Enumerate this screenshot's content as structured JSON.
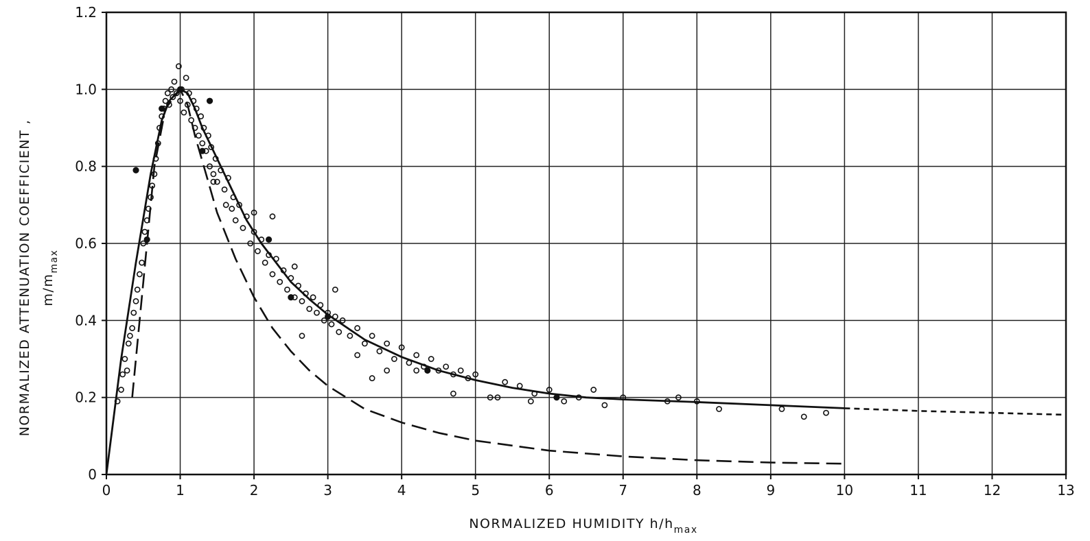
{
  "chart_data": {
    "type": "scatter",
    "xlabel_text": "NORMALIZED  HUMIDITY  h/h",
    "xlabel_sub": "max",
    "ylabel_line1": "NORMALIZED  ATTENUATION  COEFFICIENT ,",
    "ylabel_line2_text": "m/m",
    "ylabel_line2_sub": "max",
    "xlim": [
      0,
      13
    ],
    "ylim": [
      0,
      1.2
    ],
    "x_ticks": [
      0,
      1,
      2,
      3,
      4,
      5,
      6,
      7,
      8,
      9,
      10,
      11,
      12,
      13
    ],
    "x_tick_labels": [
      "0",
      "1",
      "2",
      "3",
      "4",
      "5",
      "6",
      "7",
      "8",
      "9",
      "10",
      "11",
      "12",
      "13"
    ],
    "y_ticks": [
      0,
      0.2,
      0.4,
      0.6,
      0.8,
      1.0,
      1.2
    ],
    "y_tick_labels": [
      "0",
      "0.2",
      "0.4",
      "0.6",
      "0.8",
      "1.0",
      "1.2"
    ],
    "grid": true,
    "series": [
      {
        "style": "solid",
        "points": [
          [
            0,
            0
          ],
          [
            0.2,
            0.3
          ],
          [
            0.4,
            0.55
          ],
          [
            0.6,
            0.78
          ],
          [
            0.75,
            0.92
          ],
          [
            0.85,
            0.97
          ],
          [
            1.0,
            1.0
          ],
          [
            1.1,
            0.99
          ],
          [
            1.2,
            0.95
          ],
          [
            1.3,
            0.9
          ],
          [
            1.4,
            0.86
          ],
          [
            1.5,
            0.82
          ],
          [
            1.7,
            0.74
          ],
          [
            1.9,
            0.66
          ],
          [
            2.1,
            0.6
          ],
          [
            2.3,
            0.55
          ],
          [
            2.5,
            0.5
          ],
          [
            2.75,
            0.455
          ],
          [
            3.0,
            0.415
          ],
          [
            3.5,
            0.35
          ],
          [
            4.0,
            0.305
          ],
          [
            4.5,
            0.27
          ],
          [
            5.0,
            0.245
          ],
          [
            5.5,
            0.225
          ],
          [
            6.0,
            0.21
          ],
          [
            6.5,
            0.2
          ],
          [
            7.0,
            0.195
          ],
          [
            8.0,
            0.188
          ],
          [
            9.0,
            0.18
          ],
          [
            10.0,
            0.172
          ]
        ]
      },
      {
        "style": "dotted",
        "points": [
          [
            10.0,
            0.172
          ],
          [
            11.0,
            0.165
          ],
          [
            12.0,
            0.16
          ],
          [
            13.0,
            0.155
          ]
        ]
      },
      {
        "style": "dashed",
        "points": [
          [
            0.35,
            0.2
          ],
          [
            0.5,
            0.5
          ],
          [
            0.65,
            0.8
          ],
          [
            0.8,
            0.95
          ],
          [
            1.0,
            1.0
          ],
          [
            1.1,
            0.96
          ],
          [
            1.2,
            0.88
          ],
          [
            1.35,
            0.78
          ],
          [
            1.5,
            0.68
          ],
          [
            1.75,
            0.56
          ],
          [
            2.0,
            0.46
          ],
          [
            2.25,
            0.38
          ],
          [
            2.5,
            0.32
          ],
          [
            2.75,
            0.27
          ],
          [
            3.0,
            0.23
          ],
          [
            3.5,
            0.17
          ],
          [
            4.0,
            0.135
          ],
          [
            4.5,
            0.108
          ],
          [
            5.0,
            0.088
          ],
          [
            6.0,
            0.062
          ],
          [
            7.0,
            0.047
          ],
          [
            8.0,
            0.037
          ],
          [
            9.0,
            0.031
          ],
          [
            10.0,
            0.028
          ]
        ]
      }
    ],
    "scatter_open": [
      [
        0.15,
        0.19
      ],
      [
        0.2,
        0.22
      ],
      [
        0.22,
        0.26
      ],
      [
        0.25,
        0.3
      ],
      [
        0.28,
        0.27
      ],
      [
        0.3,
        0.34
      ],
      [
        0.32,
        0.36
      ],
      [
        0.35,
        0.38
      ],
      [
        0.37,
        0.42
      ],
      [
        0.4,
        0.45
      ],
      [
        0.42,
        0.48
      ],
      [
        0.45,
        0.52
      ],
      [
        0.48,
        0.55
      ],
      [
        0.5,
        0.6
      ],
      [
        0.52,
        0.63
      ],
      [
        0.55,
        0.66
      ],
      [
        0.57,
        0.69
      ],
      [
        0.6,
        0.72
      ],
      [
        0.62,
        0.75
      ],
      [
        0.65,
        0.78
      ],
      [
        0.67,
        0.82
      ],
      [
        0.7,
        0.86
      ],
      [
        0.72,
        0.9
      ],
      [
        0.75,
        0.93
      ],
      [
        0.78,
        0.95
      ],
      [
        0.8,
        0.97
      ],
      [
        0.83,
        0.99
      ],
      [
        0.85,
        0.96
      ],
      [
        0.88,
        1.0
      ],
      [
        0.9,
        0.98
      ],
      [
        0.92,
        1.02
      ],
      [
        0.95,
        0.99
      ],
      [
        0.98,
        1.06
      ],
      [
        1.0,
        0.97
      ],
      [
        1.02,
        1.0
      ],
      [
        1.05,
        0.94
      ],
      [
        1.08,
        1.03
      ],
      [
        1.1,
        0.96
      ],
      [
        1.12,
        0.99
      ],
      [
        1.15,
        0.92
      ],
      [
        1.18,
        0.97
      ],
      [
        1.2,
        0.9
      ],
      [
        1.22,
        0.95
      ],
      [
        1.25,
        0.88
      ],
      [
        1.28,
        0.93
      ],
      [
        1.3,
        0.86
      ],
      [
        1.32,
        0.9
      ],
      [
        1.35,
        0.84
      ],
      [
        1.38,
        0.88
      ],
      [
        1.4,
        0.8
      ],
      [
        1.42,
        0.85
      ],
      [
        1.45,
        0.78
      ],
      [
        1.48,
        0.82
      ],
      [
        1.5,
        0.76
      ],
      [
        1.55,
        0.79
      ],
      [
        1.6,
        0.74
      ],
      [
        1.62,
        0.7
      ],
      [
        1.65,
        0.77
      ],
      [
        1.7,
        0.69
      ],
      [
        1.72,
        0.72
      ],
      [
        1.75,
        0.66
      ],
      [
        1.8,
        0.7
      ],
      [
        1.85,
        0.64
      ],
      [
        1.9,
        0.67
      ],
      [
        1.95,
        0.6
      ],
      [
        2.0,
        0.63
      ],
      [
        2.05,
        0.58
      ],
      [
        2.1,
        0.61
      ],
      [
        2.15,
        0.55
      ],
      [
        2.2,
        0.57
      ],
      [
        2.25,
        0.52
      ],
      [
        2.3,
        0.56
      ],
      [
        2.35,
        0.5
      ],
      [
        2.4,
        0.53
      ],
      [
        2.45,
        0.48
      ],
      [
        2.5,
        0.51
      ],
      [
        2.55,
        0.46
      ],
      [
        2.6,
        0.49
      ],
      [
        2.65,
        0.45
      ],
      [
        2.7,
        0.47
      ],
      [
        2.75,
        0.43
      ],
      [
        2.8,
        0.46
      ],
      [
        2.85,
        0.42
      ],
      [
        2.9,
        0.44
      ],
      [
        2.95,
        0.4
      ],
      [
        3.0,
        0.42
      ],
      [
        3.05,
        0.39
      ],
      [
        3.1,
        0.41
      ],
      [
        3.15,
        0.37
      ],
      [
        3.2,
        0.4
      ],
      [
        3.3,
        0.36
      ],
      [
        3.4,
        0.38
      ],
      [
        3.5,
        0.34
      ],
      [
        3.6,
        0.36
      ],
      [
        3.7,
        0.32
      ],
      [
        3.8,
        0.34
      ],
      [
        3.9,
        0.3
      ],
      [
        4.0,
        0.33
      ],
      [
        4.1,
        0.29
      ],
      [
        4.2,
        0.31
      ],
      [
        4.3,
        0.28
      ],
      [
        4.4,
        0.3
      ],
      [
        4.5,
        0.27
      ],
      [
        4.6,
        0.28
      ],
      [
        4.7,
        0.26
      ],
      [
        4.8,
        0.27
      ],
      [
        4.9,
        0.25
      ],
      [
        5.0,
        0.26
      ],
      [
        5.2,
        0.2
      ],
      [
        5.4,
        0.24
      ],
      [
        5.6,
        0.23
      ],
      [
        5.75,
        0.19
      ],
      [
        5.8,
        0.21
      ],
      [
        6.0,
        0.22
      ],
      [
        6.2,
        0.19
      ],
      [
        6.4,
        0.2
      ],
      [
        6.6,
        0.22
      ],
      [
        6.75,
        0.18
      ],
      [
        7.0,
        0.2
      ],
      [
        7.6,
        0.19
      ],
      [
        7.75,
        0.2
      ],
      [
        8.0,
        0.19
      ],
      [
        8.3,
        0.17
      ],
      [
        9.15,
        0.17
      ],
      [
        9.45,
        0.15
      ],
      [
        9.75,
        0.16
      ],
      [
        2.65,
        0.36
      ],
      [
        2.55,
        0.54
      ],
      [
        3.1,
        0.48
      ],
      [
        3.6,
        0.25
      ],
      [
        4.7,
        0.21
      ],
      [
        5.3,
        0.2
      ],
      [
        3.4,
        0.31
      ],
      [
        3.8,
        0.27
      ],
      [
        4.2,
        0.27
      ],
      [
        1.45,
        0.76
      ],
      [
        2.0,
        0.68
      ],
      [
        2.25,
        0.67
      ]
    ],
    "scatter_filled": [
      [
        0.4,
        0.79
      ],
      [
        0.55,
        0.61
      ],
      [
        0.75,
        0.95
      ],
      [
        1.0,
        1.0
      ],
      [
        1.3,
        0.84
      ],
      [
        1.4,
        0.97
      ],
      [
        2.2,
        0.61
      ],
      [
        2.5,
        0.46
      ],
      [
        3.0,
        0.41
      ],
      [
        4.35,
        0.27
      ],
      [
        6.1,
        0.2
      ]
    ]
  }
}
